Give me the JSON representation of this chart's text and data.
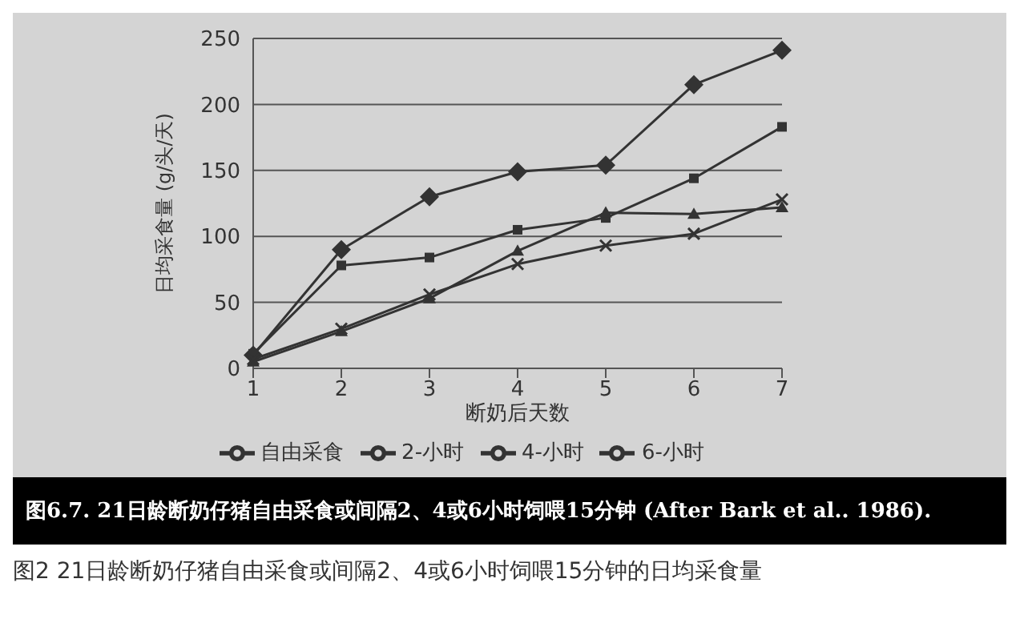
{
  "chart_data": {
    "type": "line",
    "title": "图6.7. 21日龄断奶仔猪自由采食或间隔2、4或6小时饲喂15分钟 (After Bark et al.. 1986).",
    "annotations": [
      "图2 21日龄断奶仔猪自由采食或间隔2、4或6小时饲喂15分钟的日均采食量"
    ],
    "xlabel": "断奶后天数",
    "ylabel": "日均采食量 (g/头/天)",
    "categories": [
      "1",
      "2",
      "3",
      "4",
      "5",
      "6",
      "7"
    ],
    "series": [
      {
        "name": "自由采食",
        "color": "#333333",
        "marker": "diamond",
        "values": [
          10,
          90,
          130,
          149,
          154,
          215,
          241
        ]
      },
      {
        "name": "2-小时",
        "color": "#333333",
        "marker": "square",
        "values": [
          11,
          78,
          84,
          105,
          114,
          144,
          183
        ]
      },
      {
        "name": "4-小时",
        "color": "#333333",
        "marker": "triangle",
        "values": [
          5,
          28,
          53,
          89,
          118,
          117,
          122
        ]
      },
      {
        "name": "6-小时",
        "color": "#333333",
        "marker": "cross",
        "values": [
          7,
          30,
          56,
          79,
          93,
          102,
          128
        ]
      }
    ],
    "ylim": [
      0,
      250
    ],
    "yticks": [
      0,
      50,
      100,
      150,
      200,
      250
    ],
    "grid": "y",
    "legend": "bottom"
  }
}
